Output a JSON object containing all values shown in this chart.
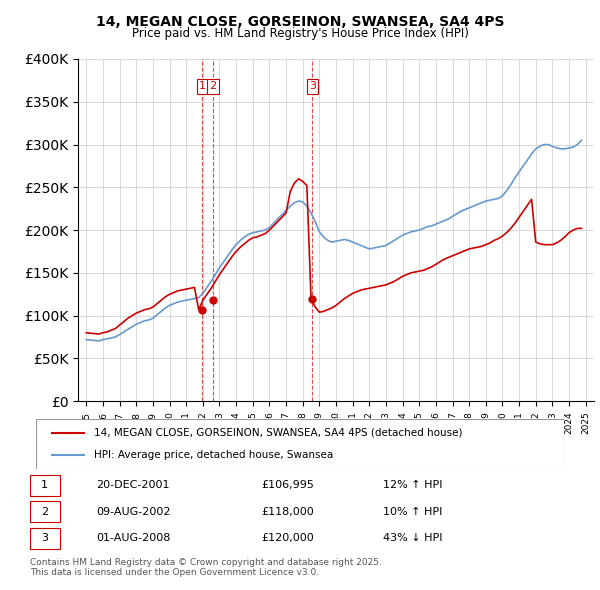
{
  "title": "14, MEGAN CLOSE, GORSEINON, SWANSEA, SA4 4PS",
  "subtitle": "Price paid vs. HM Land Registry's House Price Index (HPI)",
  "hpi_label": "HPI: Average price, detached house, Swansea",
  "price_label": "14, MEGAN CLOSE, GORSEINON, SWANSEA, SA4 4PS (detached house)",
  "ylabel_max": 400000,
  "transactions": [
    {
      "num": 1,
      "date": "20-DEC-2001",
      "price": 106995,
      "hpi_change": "12% ↑ HPI",
      "year": 2001.97
    },
    {
      "num": 2,
      "date": "09-AUG-2002",
      "price": 118000,
      "hpi_change": "10% ↑ HPI",
      "year": 2002.6
    },
    {
      "num": 3,
      "date": "01-AUG-2008",
      "price": 120000,
      "hpi_change": "43% ↓ HPI",
      "year": 2008.58
    }
  ],
  "footnote": "Contains HM Land Registry data © Crown copyright and database right 2025.\nThis data is licensed under the Open Government Licence v3.0.",
  "price_color": "#cc0000",
  "hpi_color": "#6699cc",
  "vline_color": "#cc0000",
  "background_color": "#ffffff",
  "hpi_data": {
    "years": [
      1995.0,
      1995.25,
      1995.5,
      1995.75,
      1996.0,
      1996.25,
      1996.5,
      1996.75,
      1997.0,
      1997.25,
      1997.5,
      1997.75,
      1998.0,
      1998.25,
      1998.5,
      1998.75,
      1999.0,
      1999.25,
      1999.5,
      1999.75,
      2000.0,
      2000.25,
      2000.5,
      2000.75,
      2001.0,
      2001.25,
      2001.5,
      2001.75,
      2002.0,
      2002.25,
      2002.5,
      2002.75,
      2003.0,
      2003.25,
      2003.5,
      2003.75,
      2004.0,
      2004.25,
      2004.5,
      2004.75,
      2005.0,
      2005.25,
      2005.5,
      2005.75,
      2006.0,
      2006.25,
      2006.5,
      2006.75,
      2007.0,
      2007.25,
      2007.5,
      2007.75,
      2008.0,
      2008.25,
      2008.5,
      2008.75,
      2009.0,
      2009.25,
      2009.5,
      2009.75,
      2010.0,
      2010.25,
      2010.5,
      2010.75,
      2011.0,
      2011.25,
      2011.5,
      2011.75,
      2012.0,
      2012.25,
      2012.5,
      2012.75,
      2013.0,
      2013.25,
      2013.5,
      2013.75,
      2014.0,
      2014.25,
      2014.5,
      2014.75,
      2015.0,
      2015.25,
      2015.5,
      2015.75,
      2016.0,
      2016.25,
      2016.5,
      2016.75,
      2017.0,
      2017.25,
      2017.5,
      2017.75,
      2018.0,
      2018.25,
      2018.5,
      2018.75,
      2019.0,
      2019.25,
      2019.5,
      2019.75,
      2020.0,
      2020.25,
      2020.5,
      2020.75,
      2021.0,
      2021.25,
      2021.5,
      2021.75,
      2022.0,
      2022.25,
      2022.5,
      2022.75,
      2023.0,
      2023.25,
      2023.5,
      2023.75,
      2024.0,
      2024.25,
      2024.5,
      2024.75
    ],
    "values": [
      72000,
      71500,
      71000,
      70500,
      72000,
      73000,
      74000,
      75000,
      78000,
      81000,
      84000,
      87000,
      90000,
      92000,
      94000,
      95000,
      97000,
      101000,
      105000,
      109000,
      112000,
      114000,
      116000,
      117000,
      118000,
      119000,
      120000,
      121000,
      126000,
      133000,
      140000,
      148000,
      156000,
      163000,
      170000,
      177000,
      183000,
      188000,
      192000,
      195000,
      197000,
      198000,
      199000,
      200000,
      203000,
      208000,
      213000,
      218000,
      223000,
      228000,
      232000,
      234000,
      233000,
      228000,
      220000,
      210000,
      198000,
      192000,
      188000,
      186000,
      187000,
      188000,
      189000,
      188000,
      186000,
      184000,
      182000,
      180000,
      178000,
      179000,
      180000,
      181000,
      182000,
      185000,
      188000,
      191000,
      194000,
      196000,
      198000,
      199000,
      200000,
      202000,
      204000,
      205000,
      207000,
      209000,
      211000,
      213000,
      216000,
      219000,
      222000,
      224000,
      226000,
      228000,
      230000,
      232000,
      234000,
      235000,
      236000,
      237000,
      240000,
      246000,
      253000,
      261000,
      268000,
      275000,
      282000,
      289000,
      295000,
      298000,
      300000,
      300000,
      298000,
      296000,
      295000,
      295000,
      296000,
      297000,
      300000,
      305000
    ]
  },
  "price_data": {
    "years": [
      1995.0,
      1995.25,
      1995.5,
      1995.75,
      1996.0,
      1996.25,
      1996.5,
      1996.75,
      1997.0,
      1997.25,
      1997.5,
      1997.75,
      1998.0,
      1998.25,
      1998.5,
      1998.75,
      1999.0,
      1999.25,
      1999.5,
      1999.75,
      2000.0,
      2000.25,
      2000.5,
      2000.75,
      2001.0,
      2001.25,
      2001.5,
      2001.75,
      2002.0,
      2002.25,
      2002.5,
      2002.75,
      2003.0,
      2003.25,
      2003.5,
      2003.75,
      2004.0,
      2004.25,
      2004.5,
      2004.75,
      2005.0,
      2005.25,
      2005.5,
      2005.75,
      2006.0,
      2006.25,
      2006.5,
      2006.75,
      2007.0,
      2007.25,
      2007.5,
      2007.75,
      2008.0,
      2008.25,
      2008.5,
      2008.75,
      2009.0,
      2009.25,
      2009.5,
      2009.75,
      2010.0,
      2010.25,
      2010.5,
      2010.75,
      2011.0,
      2011.25,
      2011.5,
      2011.75,
      2012.0,
      2012.25,
      2012.5,
      2012.75,
      2013.0,
      2013.25,
      2013.5,
      2013.75,
      2014.0,
      2014.25,
      2014.5,
      2014.75,
      2015.0,
      2015.25,
      2015.5,
      2015.75,
      2016.0,
      2016.25,
      2016.5,
      2016.75,
      2017.0,
      2017.25,
      2017.5,
      2017.75,
      2018.0,
      2018.25,
      2018.5,
      2018.75,
      2019.0,
      2019.25,
      2019.5,
      2019.75,
      2020.0,
      2020.25,
      2020.5,
      2020.75,
      2021.0,
      2021.25,
      2021.5,
      2021.75,
      2022.0,
      2022.25,
      2022.5,
      2022.75,
      2023.0,
      2023.25,
      2023.5,
      2023.75,
      2024.0,
      2024.25,
      2024.5,
      2024.75
    ],
    "values": [
      80000,
      79500,
      79000,
      78500,
      80000,
      81000,
      83000,
      85000,
      89000,
      93000,
      97000,
      100000,
      103000,
      105000,
      107000,
      108000,
      110000,
      114000,
      118000,
      122000,
      125000,
      127000,
      129000,
      130000,
      131000,
      132000,
      133000,
      106995,
      118000,
      125000,
      132000,
      140000,
      148000,
      155000,
      162000,
      169000,
      175000,
      180000,
      184000,
      188000,
      191000,
      192000,
      194000,
      196000,
      200000,
      205000,
      210000,
      215000,
      220000,
      245000,
      255000,
      260000,
      257000,
      252000,
      120000,
      110000,
      104000,
      105000,
      107000,
      109000,
      112000,
      116000,
      120000,
      123000,
      126000,
      128000,
      130000,
      131000,
      132000,
      133000,
      134000,
      135000,
      136000,
      138000,
      140000,
      143000,
      146000,
      148000,
      150000,
      151000,
      152000,
      153000,
      155000,
      157000,
      160000,
      163000,
      166000,
      168000,
      170000,
      172000,
      174000,
      176000,
      178000,
      179000,
      180000,
      181000,
      183000,
      185000,
      188000,
      190000,
      193000,
      197000,
      202000,
      208000,
      215000,
      222000,
      229000,
      236000,
      186000,
      184000,
      183000,
      183000,
      183000,
      185000,
      188000,
      192000,
      197000,
      200000,
      202000,
      202000
    ]
  }
}
